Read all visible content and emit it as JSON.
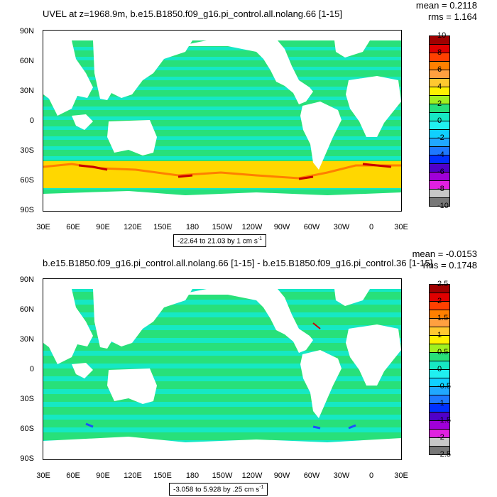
{
  "panels": [
    {
      "title": "UVEL at z=1968.9m, b.e15.B1850.f09_g16.pi_control.all.nolang.66 [1-15]",
      "stats": {
        "mean": "mean = 0.2118",
        "rms": "rms = 1.164"
      },
      "range_note": "-22.64 to 21.03 by 1 cm s",
      "range_unit_exp": "-1",
      "colorbar_labels": [
        "10",
        "8",
        "6",
        "4",
        "2",
        "0",
        "-2",
        "-4",
        "-6",
        "-8",
        "-10"
      ]
    },
    {
      "title": "b.e15.B1850.f09_g16.pi_control.all.nolang.66 [1-15] - b.e15.B1850.f09_g16.pi_control.36 [1-15]",
      "stats": {
        "mean": "mean = -0.0153",
        "rms": "rms = 0.1748"
      },
      "range_note": "-3.058 to 5.928 by .25 cm s",
      "range_unit_exp": "-1",
      "colorbar_labels": [
        "2.5",
        "2",
        "1.5",
        "1",
        "0.5",
        "0",
        "-0.5",
        "-1",
        "-1.5",
        "-2",
        "-2.5"
      ]
    }
  ],
  "lat_labels": [
    "90N",
    "60N",
    "30N",
    "0",
    "30S",
    "60S",
    "90S"
  ],
  "lon_labels": [
    "30E",
    "60E",
    "90E",
    "120E",
    "150E",
    "180",
    "150W",
    "120W",
    "90W",
    "60W",
    "30W",
    "0",
    "30E"
  ],
  "colors": {
    "ocean_base": "#28E07A",
    "ocean_alt": "#16E8C4",
    "southern_band": "#FFD700",
    "jet_hot": "#FF7F00",
    "jet_core": "#C80000",
    "blue_spot": "#1E4FFF",
    "land": "#FFFFFF",
    "colorbar": [
      "#A00000",
      "#E00000",
      "#FF4000",
      "#FF8000",
      "#FFA040",
      "#FFC830",
      "#FFF000",
      "#A0F020",
      "#28E07A",
      "#16E8C4",
      "#20F0F0",
      "#10D0FF",
      "#20A8FF",
      "#1E78FF",
      "#0030FF",
      "#5000C8",
      "#A000D8",
      "#E020E0",
      "#C8C8C8",
      "#787878"
    ]
  }
}
